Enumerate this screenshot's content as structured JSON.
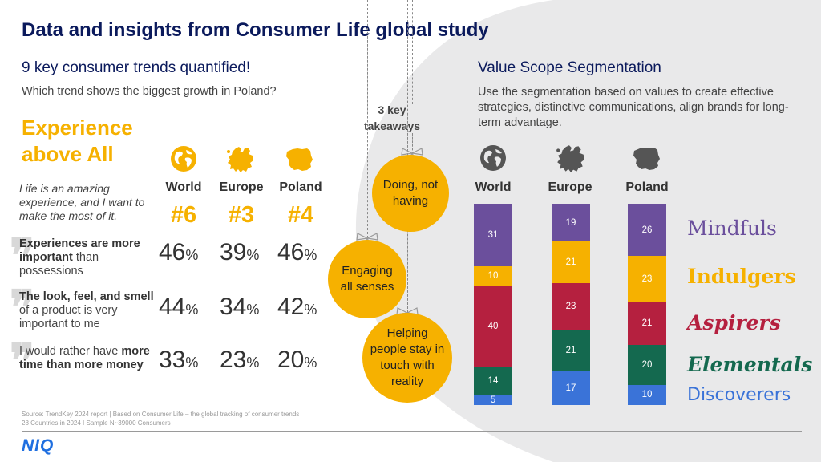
{
  "title": "Data and insights from Consumer Life global study",
  "left": {
    "heading": "9 key consumer trends quantified!",
    "question": "Which trend shows the biggest growth in Poland?",
    "trend_name": "Experience above All",
    "trend_quote": "Life is an amazing experience, and I want to make the most of it.",
    "regions": [
      {
        "label": "World",
        "rank": "#6",
        "icon": "globe-icon"
      },
      {
        "label": "Europe",
        "rank": "#3",
        "icon": "europe-map-icon"
      },
      {
        "label": "Poland",
        "rank": "#4",
        "icon": "poland-map-icon"
      }
    ],
    "statements": [
      {
        "bold": "Experiences are more important",
        "text": "than possessions",
        "values": [
          "46",
          "39",
          "46"
        ]
      },
      {
        "bold": "The look, feel, and smell",
        "text": "of a product is very important to me",
        "values": [
          "44",
          "34",
          "42"
        ]
      },
      {
        "text": "I would rather have",
        "bold": "more time than more money",
        "values": [
          "33",
          "23",
          "20"
        ]
      }
    ],
    "percent_sign": "%",
    "source_line1": "Source: TrendKey 2024 report | Based on Consumer Life – the global tracking of consumer trends",
    "source_line2": "28 Countries in 2024 I Sample N~39000 Consumers"
  },
  "takeaways": {
    "label": "3 key takeaways",
    "items": [
      "Doing, not having",
      "Engaging all senses",
      "Helping people stay in touch with reality"
    ]
  },
  "right": {
    "heading": "Value Scope Segmentation",
    "description": "Use the segmentation based on values to create effective strategies, distinctive communications, align brands for long-term advantage."
  },
  "segments": [
    {
      "name": "Mindfuls",
      "color": "#6b4f9c"
    },
    {
      "name": "Indulgers",
      "color": "#f6b100"
    },
    {
      "name": "Aspirers",
      "color": "#b5203f"
    },
    {
      "name": "Elementals",
      "color": "#14694f"
    },
    {
      "name": "Discoverers",
      "color": "#3a73d8"
    }
  ],
  "chart_data": {
    "type": "bar",
    "stacked": true,
    "categories": [
      "World",
      "Europe",
      "Poland"
    ],
    "series": [
      {
        "name": "Mindfuls",
        "values": [
          31,
          19,
          26
        ]
      },
      {
        "name": "Indulgers",
        "values": [
          10,
          21,
          23
        ]
      },
      {
        "name": "Aspirers",
        "values": [
          40,
          23,
          21
        ]
      },
      {
        "name": "Elementals",
        "values": [
          14,
          21,
          20
        ]
      },
      {
        "name": "Discoverers",
        "values": [
          5,
          17,
          10
        ]
      }
    ]
  },
  "logo": "NIQ"
}
